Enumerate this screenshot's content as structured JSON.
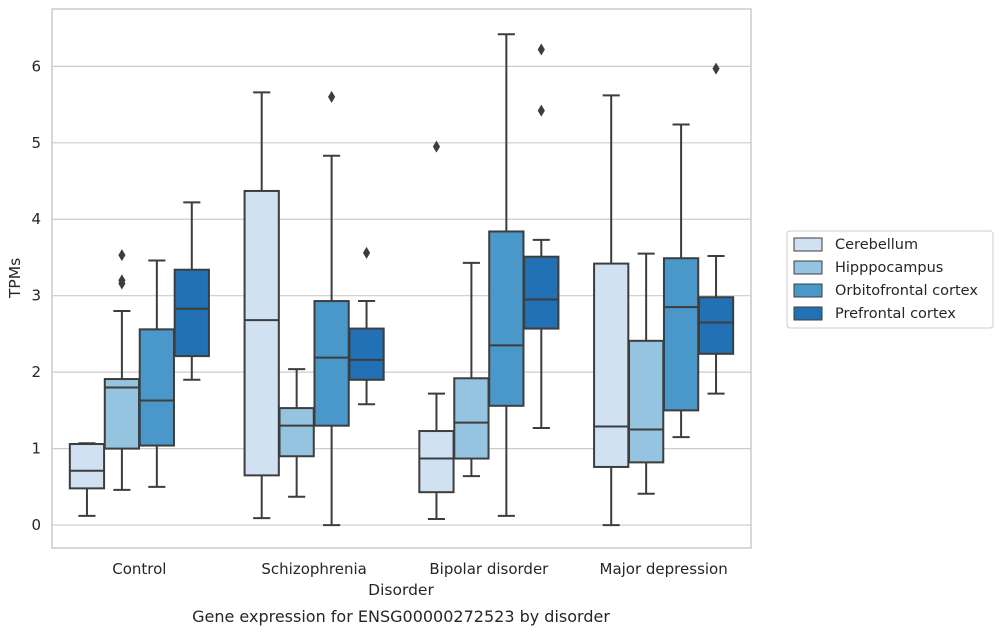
{
  "chart_data": {
    "type": "box",
    "xlabel": "Disorder",
    "ylabel": "TPMs",
    "caption": "Gene expression for ENSG00000272523 by disorder",
    "ylim": [
      -0.3,
      6.75
    ],
    "yticks": [
      0,
      1,
      2,
      3,
      4,
      5,
      6
    ],
    "grid": "horizontal",
    "legend_position": "right",
    "categories": [
      "Control",
      "Schizophrenia",
      "Bipolar disorder",
      "Major depression"
    ],
    "series": [
      {
        "name": "Cerebellum",
        "color": "#d0e1f2",
        "boxes": [
          {
            "whislo": 0.12,
            "q1": 0.48,
            "med": 0.71,
            "q3": 1.06,
            "whishi": 1.07,
            "fliers": []
          },
          {
            "whislo": 0.09,
            "q1": 0.65,
            "med": 2.68,
            "q3": 4.37,
            "whishi": 5.66,
            "fliers": []
          },
          {
            "whislo": 0.08,
            "q1": 0.43,
            "med": 0.87,
            "q3": 1.23,
            "whishi": 1.72,
            "fliers": [
              4.95
            ]
          },
          {
            "whislo": 0.0,
            "q1": 0.76,
            "med": 1.29,
            "q3": 3.42,
            "whishi": 5.62,
            "fliers": []
          }
        ]
      },
      {
        "name": "Hipppocampus",
        "color": "#94c4df",
        "boxes": [
          {
            "whislo": 0.46,
            "q1": 1.0,
            "med": 1.8,
            "q3": 1.91,
            "whishi": 2.8,
            "fliers": [
              3.53,
              3.2,
              3.16
            ]
          },
          {
            "whislo": 0.37,
            "q1": 0.9,
            "med": 1.3,
            "q3": 1.53,
            "whishi": 2.04,
            "fliers": []
          },
          {
            "whislo": 0.64,
            "q1": 0.87,
            "med": 1.34,
            "q3": 1.92,
            "whishi": 3.43,
            "fliers": []
          },
          {
            "whislo": 0.41,
            "q1": 0.82,
            "med": 1.25,
            "q3": 2.41,
            "whishi": 3.55,
            "fliers": []
          }
        ]
      },
      {
        "name": "Orbitofrontal cortex",
        "color": "#4a98c9",
        "boxes": [
          {
            "whislo": 0.5,
            "q1": 1.04,
            "med": 1.63,
            "q3": 2.56,
            "whishi": 3.46,
            "fliers": []
          },
          {
            "whislo": 0.0,
            "q1": 1.3,
            "med": 2.19,
            "q3": 2.93,
            "whishi": 4.83,
            "fliers": [
              5.6
            ]
          },
          {
            "whislo": 0.12,
            "q1": 1.56,
            "med": 2.35,
            "q3": 3.84,
            "whishi": 6.42,
            "fliers": []
          },
          {
            "whislo": 1.15,
            "q1": 1.5,
            "med": 2.85,
            "q3": 3.49,
            "whishi": 5.24,
            "fliers": []
          }
        ]
      },
      {
        "name": "Prefrontal cortex",
        "color": "#2271b5",
        "boxes": [
          {
            "whislo": 1.9,
            "q1": 2.21,
            "med": 2.83,
            "q3": 3.34,
            "whishi": 4.22,
            "fliers": []
          },
          {
            "whislo": 1.58,
            "q1": 1.9,
            "med": 2.16,
            "q3": 2.57,
            "whishi": 2.93,
            "fliers": [
              3.56
            ]
          },
          {
            "whislo": 1.27,
            "q1": 2.57,
            "med": 2.95,
            "q3": 3.51,
            "whishi": 3.73,
            "fliers": [
              6.22,
              5.42
            ]
          },
          {
            "whislo": 1.72,
            "q1": 2.24,
            "med": 2.65,
            "q3": 2.98,
            "whishi": 3.52,
            "fliers": [
              5.97
            ]
          }
        ]
      }
    ]
  }
}
